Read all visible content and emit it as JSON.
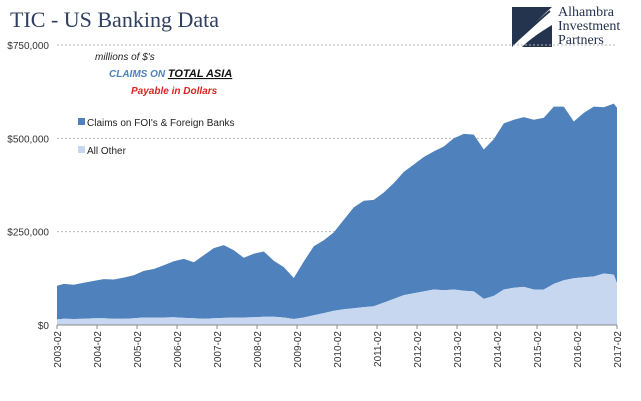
{
  "header": {
    "title": "TIC - US Banking Data",
    "logo_lines": [
      "Alhambra",
      "Investment",
      "Partners"
    ]
  },
  "chart_data": {
    "type": "area",
    "stacked": true,
    "annotations": {
      "units": "millions of $'s",
      "claims_on": "CLAIMS ON ",
      "region": "TOTAL ASIA",
      "payable": "Payable  in Dollars"
    },
    "legend_position": "left",
    "grid": "horizontal dashed",
    "colors": {
      "foi": "#4f81bd",
      "other": "#c6d7ef",
      "annotation_blue": "#4f81bd",
      "annotation_red": "#e02020",
      "text": "#333333"
    },
    "y_ticks": [
      "$0",
      "$250,000",
      "$500,000",
      "$750,000"
    ],
    "y_tick_values": [
      0,
      250000,
      500000,
      750000
    ],
    "ylim": [
      0,
      750000
    ],
    "x_ticks": [
      "2003-02",
      "2004-02",
      "2005-02",
      "2006-02",
      "2007-02",
      "2008-02",
      "2009-02",
      "2010-02",
      "2011-02",
      "2012-02",
      "2013-02",
      "2014-02",
      "2015-02",
      "2016-02",
      "2017-02"
    ],
    "x_tick_values": [
      2003.08,
      2004.08,
      2005.08,
      2006.08,
      2007.08,
      2008.08,
      2009.08,
      2010.08,
      2011.08,
      2012.08,
      2013.08,
      2014.08,
      2015.08,
      2016.08,
      2017.08
    ],
    "xlim": [
      2003.08,
      2017.08
    ],
    "x": [
      2003.08,
      2003.25,
      2003.5,
      2003.75,
      2004.0,
      2004.25,
      2004.5,
      2004.75,
      2005.0,
      2005.25,
      2005.5,
      2005.75,
      2006.0,
      2006.25,
      2006.5,
      2006.75,
      2007.0,
      2007.25,
      2007.5,
      2007.75,
      2008.0,
      2008.25,
      2008.5,
      2008.75,
      2009.0,
      2009.25,
      2009.5,
      2009.75,
      2010.0,
      2010.25,
      2010.5,
      2010.75,
      2011.0,
      2011.25,
      2011.5,
      2011.75,
      2012.0,
      2012.25,
      2012.5,
      2012.75,
      2013.0,
      2013.25,
      2013.5,
      2013.75,
      2014.0,
      2014.25,
      2014.5,
      2014.75,
      2015.0,
      2015.25,
      2015.5,
      2015.75,
      2016.0,
      2016.25,
      2016.5,
      2016.75,
      2017.0,
      2017.08
    ],
    "series": [
      {
        "name": "Claims on FOI's & Foreign Banks",
        "values": [
          90000,
          93000,
          92000,
          96000,
          100000,
          105000,
          105000,
          110000,
          115000,
          125000,
          130000,
          140000,
          150000,
          158000,
          150000,
          170000,
          188000,
          195000,
          180000,
          160000,
          170000,
          175000,
          150000,
          135000,
          110000,
          150000,
          185000,
          195000,
          210000,
          240000,
          270000,
          285000,
          285000,
          295000,
          310000,
          330000,
          345000,
          360000,
          370000,
          385000,
          405000,
          420000,
          420000,
          400000,
          420000,
          445000,
          450000,
          455000,
          455000,
          460000,
          475000,
          465000,
          420000,
          440000,
          455000,
          445000,
          458000,
          470000
        ]
      },
      {
        "name": "All Other",
        "values": [
          15000,
          17000,
          16000,
          17000,
          18000,
          18000,
          17000,
          17000,
          18000,
          20000,
          20000,
          20000,
          21000,
          19000,
          18000,
          17000,
          18000,
          19000,
          20000,
          20000,
          21000,
          22000,
          22000,
          20000,
          16000,
          20000,
          26000,
          32000,
          38000,
          42000,
          45000,
          48000,
          50000,
          60000,
          70000,
          80000,
          85000,
          90000,
          95000,
          93000,
          95000,
          92000,
          90000,
          70000,
          78000,
          95000,
          100000,
          102000,
          95000,
          95000,
          110000,
          120000,
          125000,
          128000,
          130000,
          138000,
          135000,
          112000
        ]
      }
    ]
  }
}
